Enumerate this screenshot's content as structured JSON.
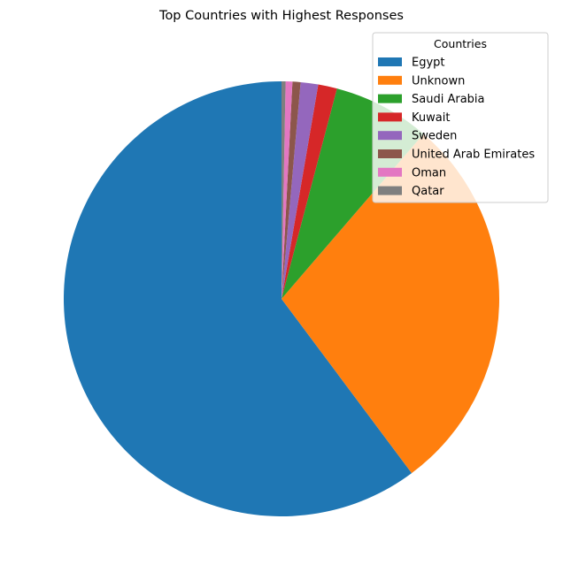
{
  "chart_data": {
    "type": "pie",
    "title": "Top Countries with Highest Responses",
    "legend_title": "Countries",
    "legend_position": "top-right",
    "start_angle_deg": 90,
    "direction": "counterclockwise",
    "slices": [
      {
        "label": "Egypt",
        "value": 60.2,
        "color": "#1f77b4"
      },
      {
        "label": "Unknown",
        "value": 28.5,
        "color": "#ff7f0e"
      },
      {
        "label": "Saudi Arabia",
        "value": 7.2,
        "color": "#2ca02c"
      },
      {
        "label": "Kuwait",
        "value": 1.4,
        "color": "#d62728"
      },
      {
        "label": "Sweden",
        "value": 1.3,
        "color": "#9467bd"
      },
      {
        "label": "United Arab Emirates",
        "value": 0.6,
        "color": "#8c564b"
      },
      {
        "label": "Oman",
        "value": 0.5,
        "color": "#e377c2"
      },
      {
        "label": "Qatar",
        "value": 0.3,
        "color": "#7f7f7f"
      }
    ]
  }
}
